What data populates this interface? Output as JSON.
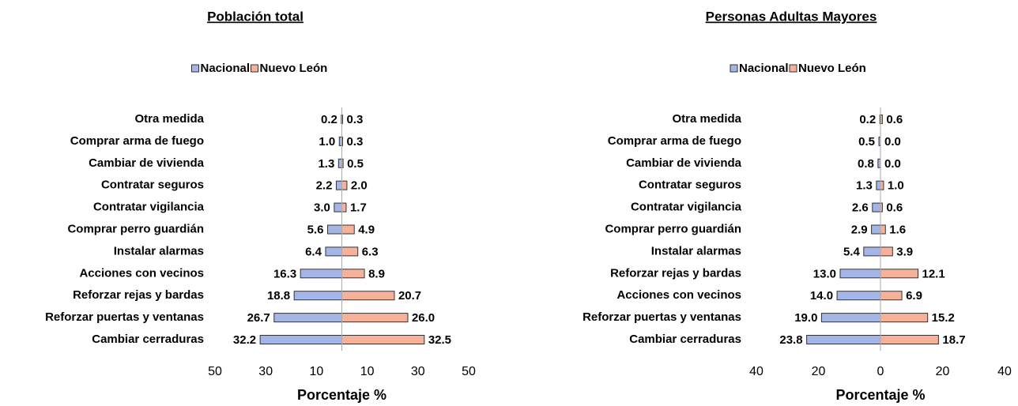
{
  "chart_data": [
    {
      "type": "butterfly",
      "title": "Población total",
      "xlabel": "Porcentaje %",
      "categories": [
        "Otra medida",
        "Comprar arma de fuego",
        "Cambiar de vivienda",
        "Contratar seguros",
        "Contratar vigilancia",
        "Comprar perro guardián",
        "Instalar alarmas",
        "Acciones con vecinos",
        "Reforzar rejas y bardas",
        "Reforzar puertas y ventanas",
        "Cambiar cerraduras"
      ],
      "series": [
        {
          "name": "Nacional",
          "color": "#a4b6e8",
          "values": [
            0.2,
            1.0,
            1.3,
            2.2,
            3.0,
            5.6,
            6.4,
            16.3,
            18.8,
            26.7,
            32.2
          ],
          "value_labels": [
            "0.2",
            "1.0",
            "1.3",
            "2.2",
            "3.0",
            "5.6",
            "6.4",
            "16.3",
            "18.8",
            "26.7",
            "32.2"
          ]
        },
        {
          "name": "Nuevo León",
          "color": "#f6b19b",
          "values": [
            0.3,
            0.3,
            0.5,
            2.0,
            1.7,
            4.9,
            6.3,
            8.9,
            20.7,
            26.0,
            32.5
          ],
          "value_labels": [
            "0.3",
            "0.3",
            "0.5",
            "2.0",
            "1.7",
            "4.9",
            "6.3",
            "8.9",
            "20.7",
            "26.0",
            "32.5"
          ]
        }
      ],
      "xlim": [
        -50,
        50
      ],
      "xticks": [
        {
          "value": -50,
          "label": "50"
        },
        {
          "value": -30,
          "label": "30"
        },
        {
          "value": -10,
          "label": "10"
        },
        10,
        30,
        50
      ],
      "legend": "top"
    },
    {
      "type": "butterfly",
      "title": "Personas Adultas Mayores",
      "xlabel": "Porcentaje %",
      "categories": [
        "Otra medida",
        "Comprar arma de fuego",
        "Cambiar de vivienda",
        "Contratar seguros",
        "Contratar vigilancia",
        "Comprar perro guardián",
        "Instalar alarmas",
        "Reforzar rejas y bardas",
        "Acciones con vecinos",
        "Reforzar puertas y ventanas",
        "Cambiar cerraduras"
      ],
      "series": [
        {
          "name": "Nacional",
          "color": "#a4b6e8",
          "values": [
            0.2,
            0.5,
            0.8,
            1.3,
            2.6,
            2.9,
            5.4,
            13.0,
            14.0,
            19.0,
            23.8
          ],
          "value_labels": [
            "0.2",
            "0.5",
            "0.8",
            "1.3",
            "2.6",
            "2.9",
            "5.4",
            "13.0",
            "14.0",
            "19.0",
            "23.8"
          ]
        },
        {
          "name": "Nuevo León",
          "color": "#f6b19b",
          "values": [
            0.6,
            0.0,
            0.0,
            1.0,
            0.6,
            1.6,
            3.9,
            12.1,
            6.9,
            15.2,
            18.7
          ],
          "value_labels": [
            "0.6",
            "0.0",
            "0.0",
            "1.0",
            "0.6",
            "1.6",
            "3.9",
            "12.1",
            "6.9",
            "15.2",
            "18.7"
          ]
        }
      ],
      "xlim": [
        -40,
        40
      ],
      "xticks": [
        {
          "value": -40,
          "label": "40"
        },
        {
          "value": -20,
          "label": "20"
        },
        0,
        20,
        40
      ],
      "legend": "top"
    }
  ]
}
